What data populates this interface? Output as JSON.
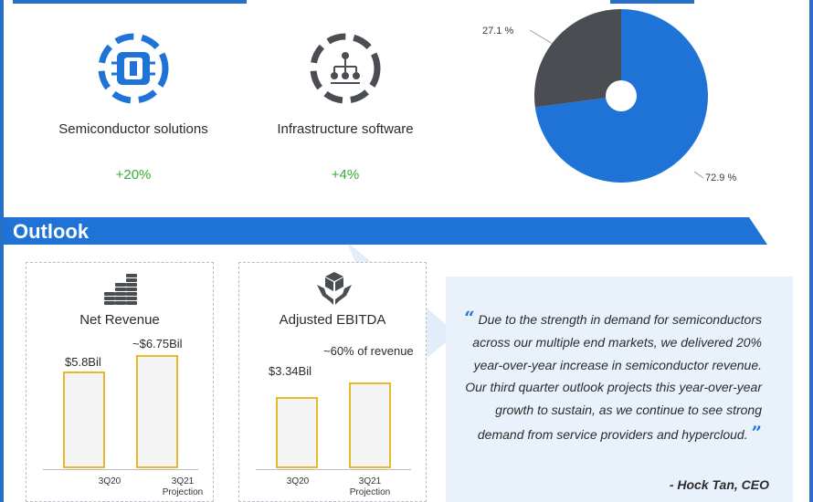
{
  "segments": [
    {
      "name": "Semiconductor solutions",
      "growth": "+20%",
      "icon": "chip-icon"
    },
    {
      "name": "Infrastructure software",
      "growth": "+4%",
      "icon": "network-icon"
    }
  ],
  "chart_data": [
    {
      "type": "pie",
      "slices": [
        {
          "value": 72.9,
          "label": "72.9 %",
          "color": "#1f73d6"
        },
        {
          "value": 27.1,
          "label": "27.1 %",
          "color": "#4a4d51"
        }
      ]
    },
    {
      "type": "bar",
      "title": "Net Revenue",
      "categories": [
        "3Q20",
        "3Q21 Projection"
      ],
      "values": [
        5.8,
        6.75
      ],
      "data_labels": [
        "$5.8Bil",
        "~$6.75Bil"
      ]
    },
    {
      "type": "bar",
      "title": "Adjusted EBITDA",
      "categories": [
        "3Q20",
        "3Q21 Projection"
      ],
      "values": [
        3.34,
        4.05
      ],
      "data_labels": [
        "$3.34Bil",
        "~60% of revenue"
      ]
    }
  ],
  "outlook": {
    "title": "Outlook"
  },
  "cards": {
    "net_revenue": {
      "icon": "coin-stacks-icon",
      "cat1": "3Q20",
      "cat2_line1": "3Q21",
      "cat2_line2": "Projection"
    },
    "ebitda": {
      "icon": "hands-box-icon",
      "cat1": "3Q20",
      "cat2_line1": "3Q21",
      "cat2_line2": "Projection"
    }
  },
  "quote": {
    "text": "Due to the strength in demand for semiconductors across our multiple end markets, we delivered 20% year-over-year increase in semiconductor revenue. Our third quarter outlook projects this year-over-year growth to sustain, as we continue to see strong demand from service providers and hypercloud.",
    "author": "- Hock Tan, CEO"
  },
  "colors": {
    "brand_blue": "#1f73d6",
    "growth_green": "#3aaa35",
    "bar_outline": "#e8b82d",
    "dark_slice": "#4a4d51"
  }
}
